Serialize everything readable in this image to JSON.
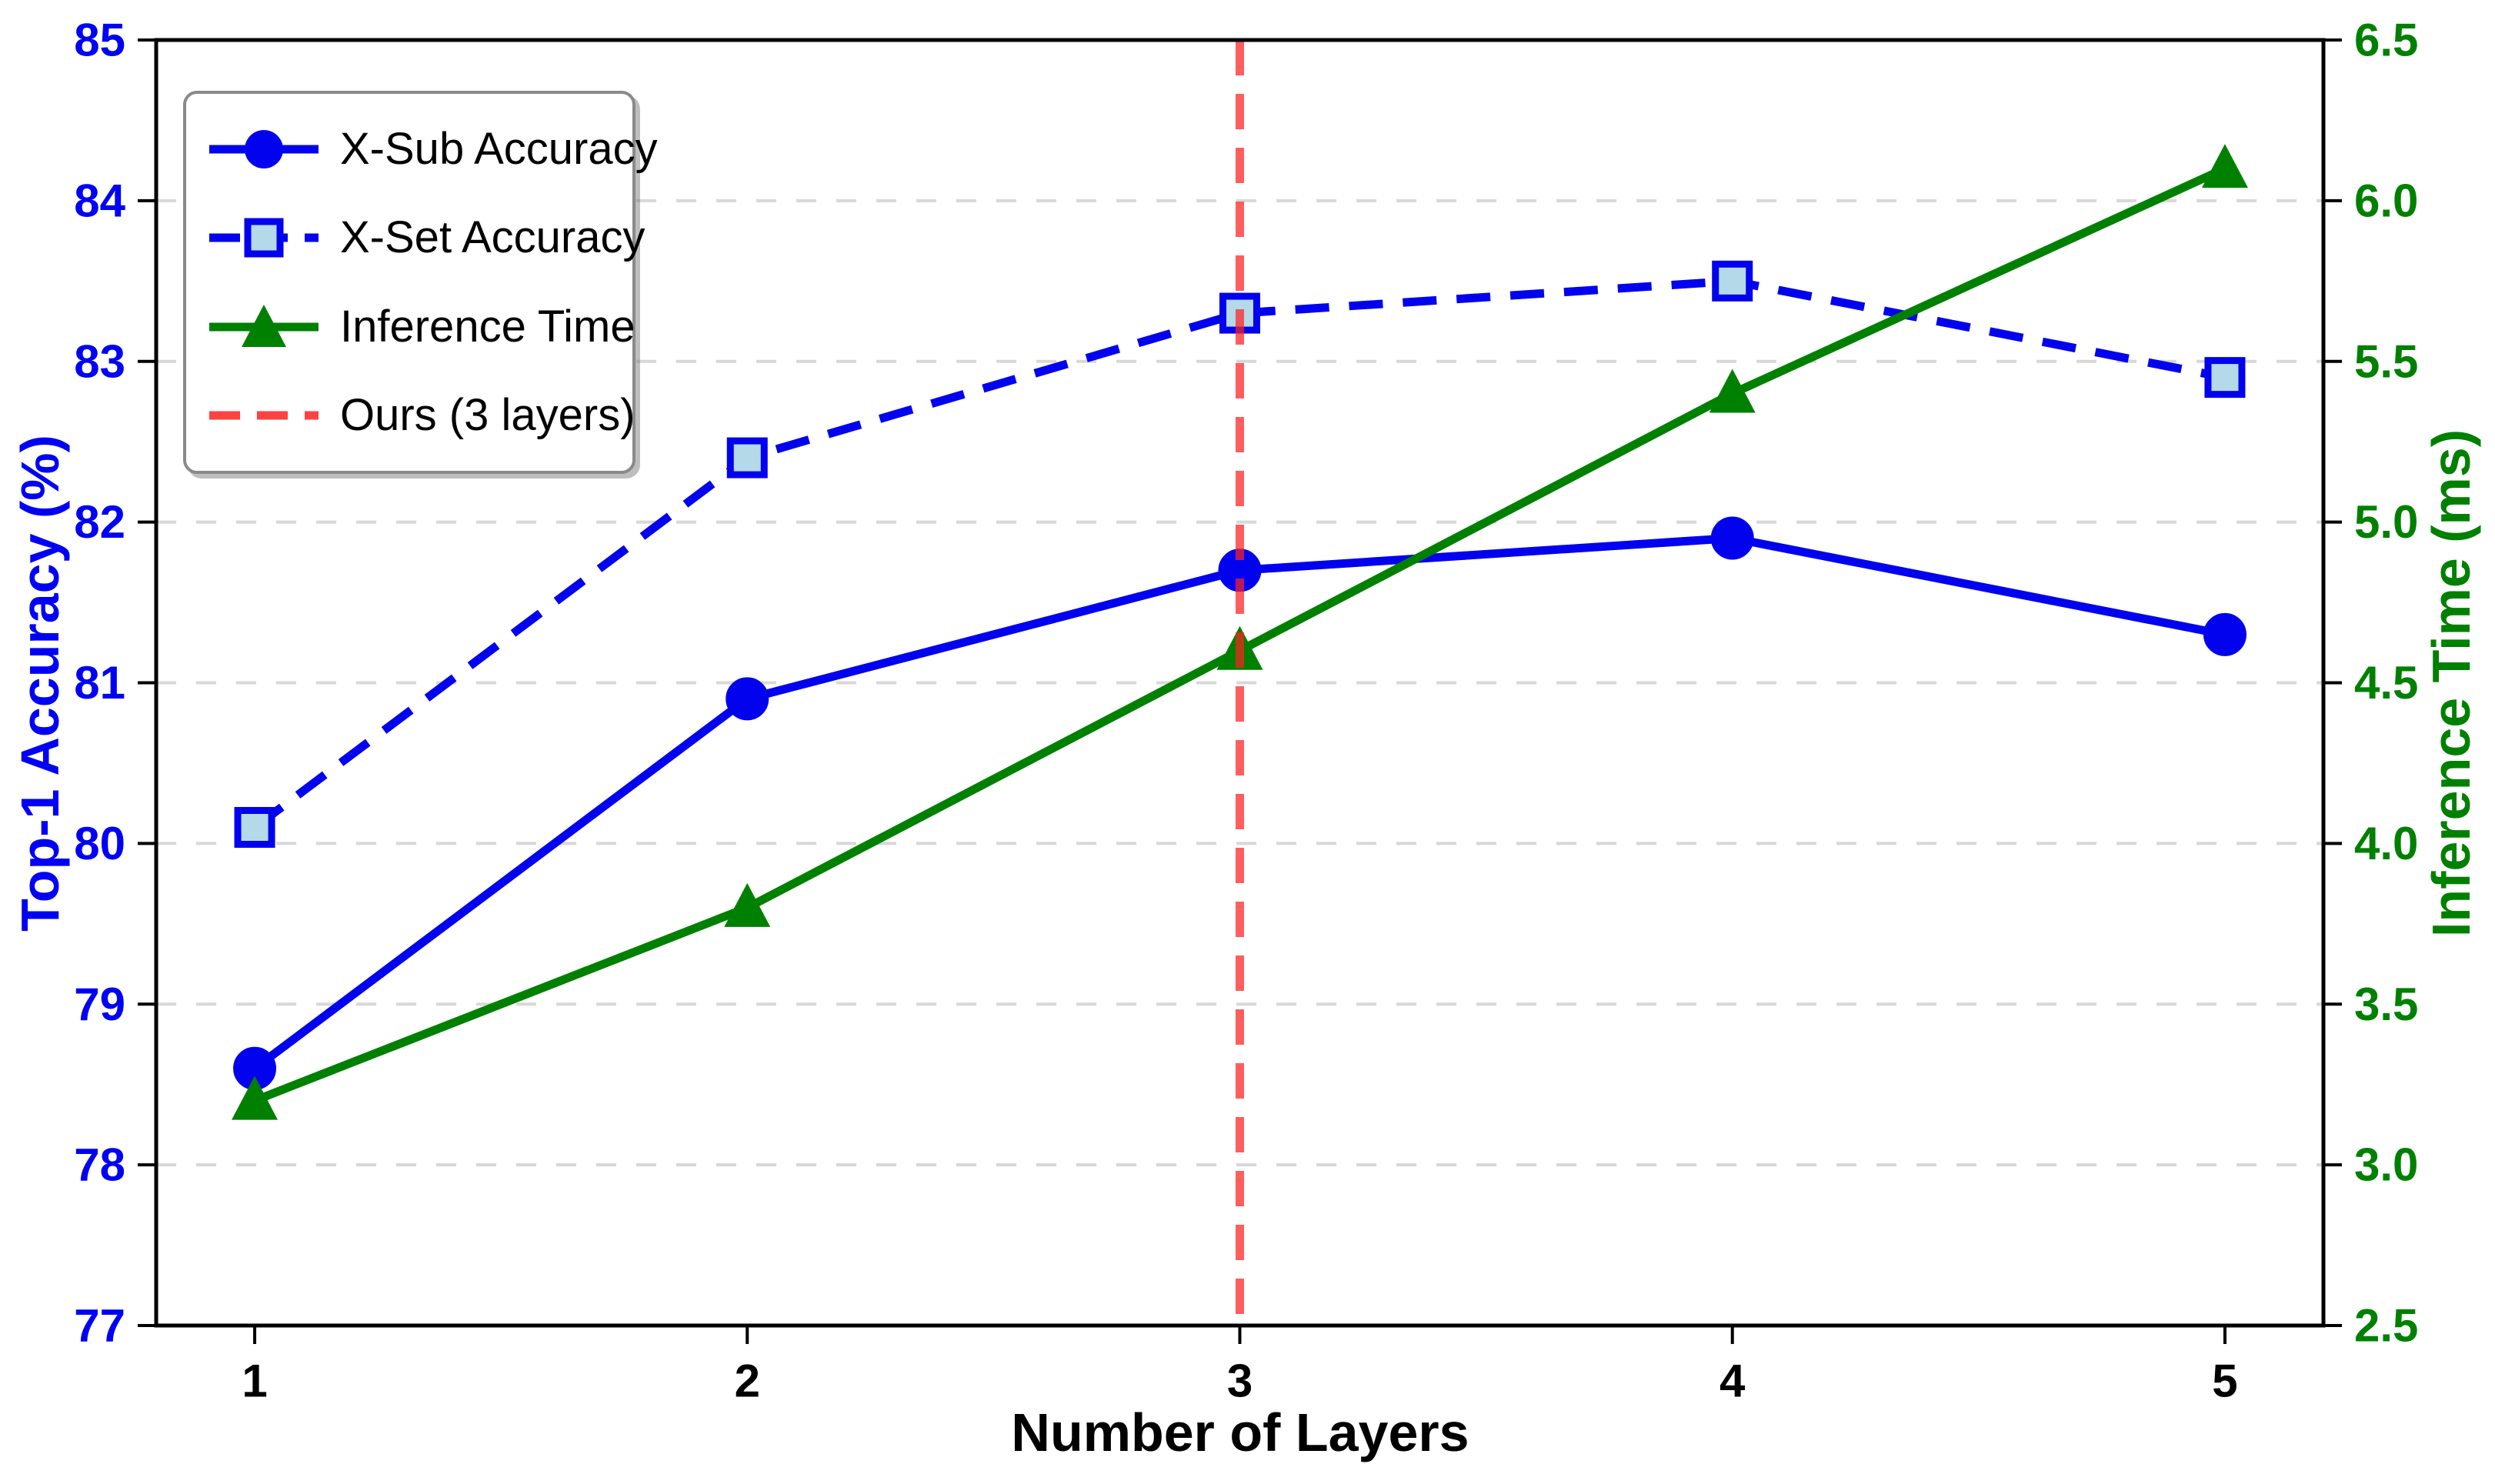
{
  "chart_data": {
    "type": "line",
    "title": "",
    "xlabel": "Number of Layers",
    "x": [
      1,
      2,
      3,
      4,
      5
    ],
    "xtick_labels": [
      "1",
      "2",
      "3",
      "4",
      "5"
    ],
    "xlim": [
      0.8,
      5.2
    ],
    "left_axis": {
      "label": "Top-1 Accuracy (%)",
      "lim": [
        77,
        85
      ],
      "ticks": [
        85,
        84,
        83,
        82,
        81,
        80,
        79,
        78,
        77
      ],
      "tick_labels": [
        "85",
        "84",
        "83",
        "82",
        "81",
        "80",
        "79",
        "78",
        "77"
      ],
      "color": "#0000f5"
    },
    "right_axis": {
      "label": "Inference Time (ms)",
      "lim": [
        2.5,
        6.5
      ],
      "ticks": [
        6.5,
        6.0,
        5.5,
        5.0,
        4.5,
        4.0,
        3.5,
        3.0,
        2.5
      ],
      "tick_labels": [
        "6.5",
        "6.0",
        "5.5",
        "5.0",
        "4.5",
        "4.0",
        "3.5",
        "3.0",
        "2.5"
      ],
      "color": "#008000"
    },
    "grid": {
      "on": true,
      "axis": "y",
      "style": "dashed",
      "color": "#d8d8d8"
    },
    "series": [
      {
        "name": "X-Sub Accuracy",
        "axis": "left",
        "values": [
          78.6,
          80.9,
          81.7,
          81.9,
          81.3
        ],
        "color": "#0202ee",
        "line": "solid",
        "marker": "circle",
        "marker_fill": "#0202ee"
      },
      {
        "name": "X-Set Accuracy",
        "axis": "left",
        "values": [
          80.1,
          82.4,
          83.3,
          83.5,
          82.9
        ],
        "color": "#0202ee",
        "line": "dashed",
        "marker": "square",
        "marker_fill": "#b4d9e8"
      },
      {
        "name": "Inference Time",
        "axis": "right",
        "values": [
          3.2,
          3.8,
          4.6,
          5.4,
          6.1
        ],
        "color": "#008000",
        "line": "solid",
        "marker": "triangle",
        "marker_fill": "#008000"
      }
    ],
    "vline": {
      "x": 3,
      "label": "Ours (3 layers)",
      "color": "#ff2020",
      "opacity": 0.72,
      "style": "dashed"
    },
    "legend_position": "upper-left"
  }
}
